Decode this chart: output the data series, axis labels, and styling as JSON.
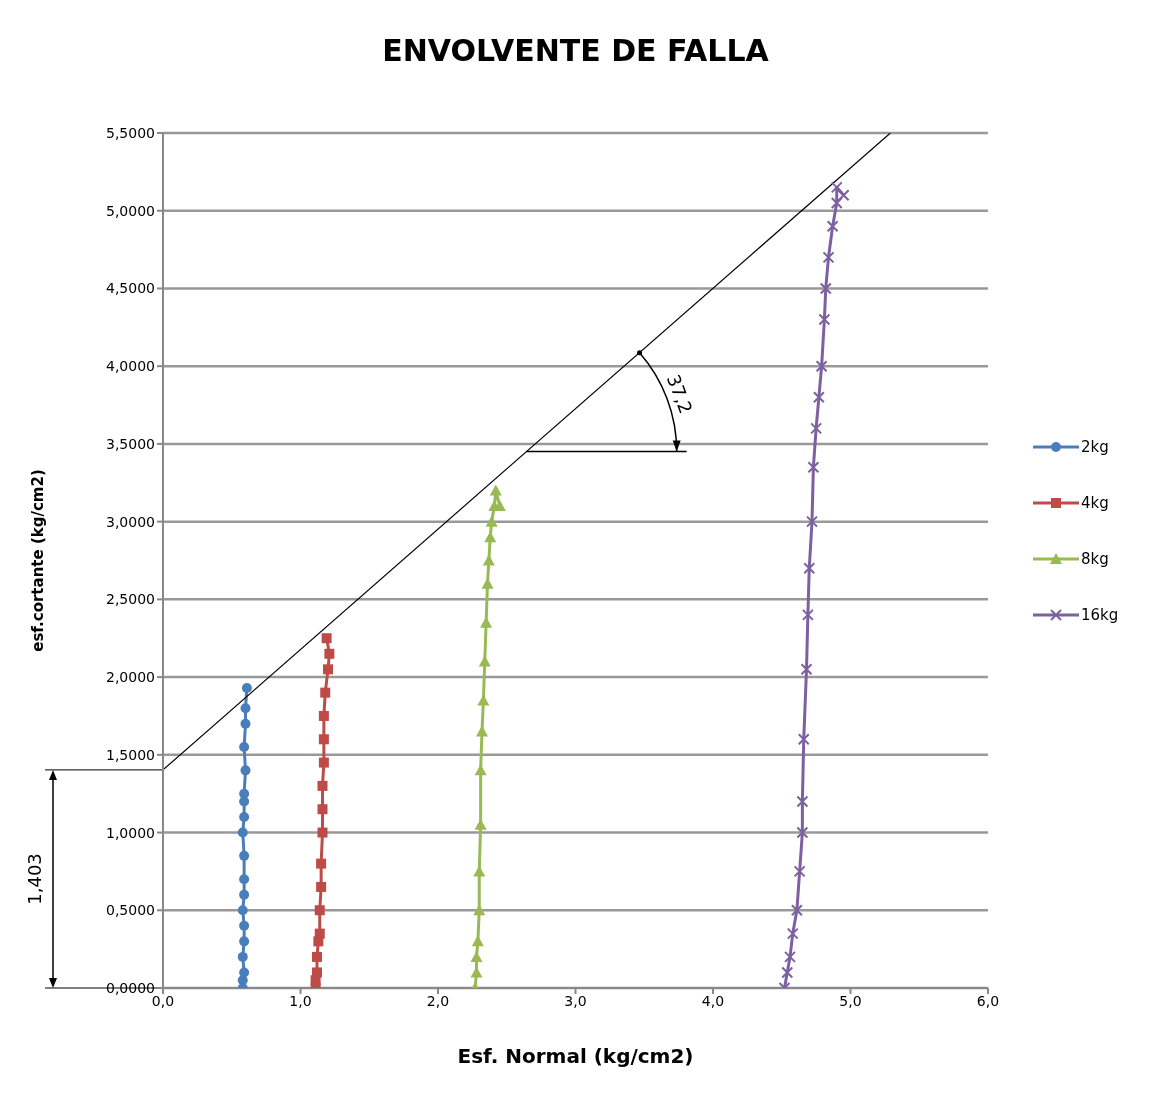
{
  "chart_data": {
    "type": "line",
    "title": "ENVOLVENTE DE FALLA",
    "xlabel": "Esf. Normal (kg/cm2)",
    "ylabel": "esf.cortante (kg/cm2)",
    "xlim": [
      0,
      6
    ],
    "xticks": [
      {
        "value": 0,
        "label": "0,0"
      },
      {
        "value": 1,
        "label": "1,0"
      },
      {
        "value": 2,
        "label": "2,0"
      },
      {
        "value": 3,
        "label": "3,0"
      },
      {
        "value": 4,
        "label": "4,0"
      },
      {
        "value": 5,
        "label": "5,0"
      },
      {
        "value": 6,
        "label": "6,0"
      }
    ],
    "ylim": [
      0,
      5.5
    ],
    "yticks": [
      {
        "value": 0,
        "label": "0,0000"
      },
      {
        "value": 0.5,
        "label": "0,5000"
      },
      {
        "value": 1,
        "label": "1,0000"
      },
      {
        "value": 1.5,
        "label": "1,5000"
      },
      {
        "value": 2,
        "label": "2,0000"
      },
      {
        "value": 2.5,
        "label": "2,5000"
      },
      {
        "value": 3,
        "label": "3,0000"
      },
      {
        "value": 3.5,
        "label": "3,5000"
      },
      {
        "value": 4,
        "label": "4,0000"
      },
      {
        "value": 4.5,
        "label": "4,5000"
      },
      {
        "value": 5,
        "label": "5,0000"
      },
      {
        "value": 5.5,
        "label": "5,5000"
      }
    ],
    "grid": "y",
    "legend": "right",
    "line_style": "solid",
    "annotations": [
      "1,403",
      "37,2"
    ],
    "series": [
      {
        "name": "2kg",
        "color": "#4a7ebb",
        "marker": "circle",
        "x": [
          0.58,
          0.58,
          0.59,
          0.58,
          0.59,
          0.59,
          0.58,
          0.59,
          0.59,
          0.59,
          0.58,
          0.59,
          0.59,
          0.59,
          0.6,
          0.59,
          0.6,
          0.6,
          0.61
        ],
        "values": [
          0,
          0.05,
          0.1,
          0.2,
          0.3,
          0.4,
          0.5,
          0.6,
          0.7,
          0.85,
          1.0,
          1.1,
          1.2,
          1.25,
          1.4,
          1.55,
          1.7,
          1.8,
          1.93
        ]
      },
      {
        "name": "4kg",
        "color": "#be4b48",
        "marker": "square",
        "x": [
          1.11,
          1.11,
          1.12,
          1.12,
          1.13,
          1.14,
          1.14,
          1.15,
          1.15,
          1.16,
          1.16,
          1.16,
          1.17,
          1.17,
          1.17,
          1.18,
          1.2,
          1.21,
          1.19
        ],
        "values": [
          0,
          0.05,
          0.1,
          0.2,
          0.3,
          0.35,
          0.5,
          0.65,
          0.8,
          1.0,
          1.15,
          1.3,
          1.45,
          1.6,
          1.75,
          1.9,
          2.05,
          2.15,
          2.25
        ]
      },
      {
        "name": "8kg",
        "color": "#98b954",
        "marker": "triangle",
        "x": [
          2.27,
          2.28,
          2.28,
          2.29,
          2.3,
          2.3,
          2.31,
          2.31,
          2.32,
          2.33,
          2.34,
          2.35,
          2.36,
          2.37,
          2.38,
          2.39,
          2.41,
          2.42,
          2.45
        ],
        "values": [
          0,
          0.1,
          0.2,
          0.3,
          0.5,
          0.75,
          1.05,
          1.4,
          1.65,
          1.85,
          2.1,
          2.35,
          2.6,
          2.75,
          2.9,
          3.0,
          3.1,
          3.2,
          3.1
        ]
      },
      {
        "name": "16kg",
        "color": "#7d60a0",
        "marker": "cross",
        "x": [
          4.52,
          4.54,
          4.56,
          4.58,
          4.61,
          4.63,
          4.65,
          4.65,
          4.66,
          4.68,
          4.69,
          4.7,
          4.72,
          4.73,
          4.75,
          4.77,
          4.79,
          4.81,
          4.82,
          4.84,
          4.87,
          4.9,
          4.9,
          4.95
        ],
        "values": [
          0,
          0.1,
          0.2,
          0.35,
          0.5,
          0.75,
          1.0,
          1.2,
          1.6,
          2.05,
          2.4,
          2.7,
          3.0,
          3.35,
          3.6,
          3.8,
          4.0,
          4.3,
          4.5,
          4.7,
          4.9,
          5.05,
          5.15,
          5.1
        ]
      },
      {
        "type": "line",
        "color": "#000000",
        "marker": "none",
        "x": [
          0,
          5.29
        ],
        "values": [
          1.403,
          5.5
        ]
      }
    ]
  }
}
